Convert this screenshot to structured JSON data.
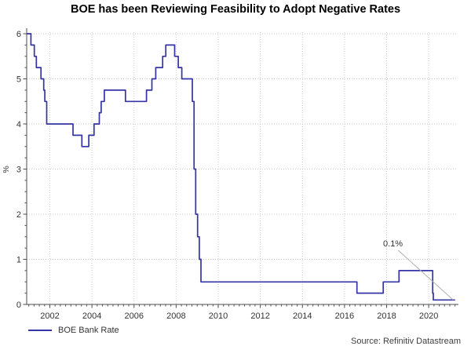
{
  "title": "BOE has been Reviewing Feasibility to Adopt Negative Rates",
  "source": "Source: Refinitiv Datastream",
  "legend": {
    "items": [
      {
        "label": "BOE Bank Rate",
        "color": "#3434a6",
        "marker": "line-icon"
      }
    ]
  },
  "colors": {
    "series_line": "#3434a6",
    "gridline": "#cbcbcb",
    "axis": "#4d4d4d",
    "tick_label": "#333333",
    "annotation_text": "#333333",
    "annotation_leader": "#b0b0b0",
    "background": "#ffffff"
  },
  "chart_data": {
    "type": "line",
    "step": true,
    "title": "BOE has been Reviewing Feasibility to Adopt Negative Rates",
    "xlabel": "",
    "ylabel": "%",
    "xlim": [
      2000.9,
      2021.3
    ],
    "ylim": [
      0,
      6
    ],
    "grid": true,
    "legend_position": "bottom-left",
    "x_major_ticks": [
      2002,
      2004,
      2006,
      2008,
      2010,
      2012,
      2014,
      2016,
      2018,
      2020
    ],
    "x_minor_tick_step": 0.25,
    "y_major_ticks": [
      0,
      1,
      2,
      3,
      4,
      5,
      6
    ],
    "y_minor_tick_step": 0.25,
    "series": [
      {
        "name": "BOE Bank Rate",
        "color": "#3434a6",
        "points": [
          [
            2000.9,
            6.0
          ],
          [
            2001.1,
            5.75
          ],
          [
            2001.26,
            5.5
          ],
          [
            2001.36,
            5.25
          ],
          [
            2001.58,
            5.0
          ],
          [
            2001.71,
            4.75
          ],
          [
            2001.76,
            4.5
          ],
          [
            2001.85,
            4.0
          ],
          [
            2003.1,
            3.75
          ],
          [
            2003.52,
            3.5
          ],
          [
            2003.85,
            3.75
          ],
          [
            2004.1,
            4.0
          ],
          [
            2004.35,
            4.25
          ],
          [
            2004.44,
            4.5
          ],
          [
            2004.59,
            4.75
          ],
          [
            2005.59,
            4.5
          ],
          [
            2006.59,
            4.75
          ],
          [
            2006.85,
            5.0
          ],
          [
            2007.03,
            5.25
          ],
          [
            2007.36,
            5.5
          ],
          [
            2007.51,
            5.75
          ],
          [
            2007.93,
            5.5
          ],
          [
            2008.1,
            5.25
          ],
          [
            2008.27,
            5.0
          ],
          [
            2008.77,
            4.5
          ],
          [
            2008.85,
            3.0
          ],
          [
            2008.93,
            2.0
          ],
          [
            2009.02,
            1.5
          ],
          [
            2009.1,
            1.0
          ],
          [
            2009.18,
            0.5
          ],
          [
            2016.59,
            0.25
          ],
          [
            2017.84,
            0.5
          ],
          [
            2018.59,
            0.75
          ],
          [
            2020.19,
            0.25
          ],
          [
            2020.22,
            0.1
          ],
          [
            2021.25,
            0.1
          ]
        ]
      }
    ],
    "annotation": {
      "text": "0.1%",
      "text_pos": [
        2018.3,
        1.36
      ],
      "leader_from": [
        2018.55,
        1.2
      ],
      "leader_to": [
        2021.16,
        0.1
      ]
    }
  }
}
